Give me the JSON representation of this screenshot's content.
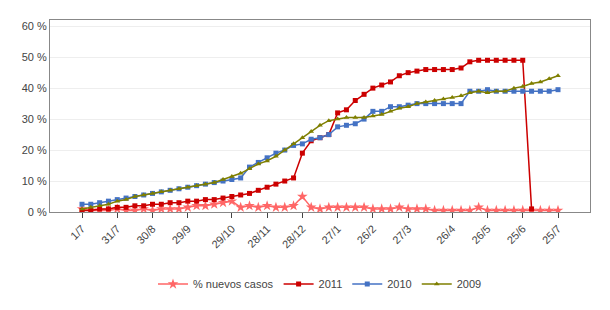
{
  "chart_data": {
    "type": "line",
    "categories": [
      "1/7",
      null,
      null,
      null,
      "31/7",
      null,
      null,
      null,
      "30/8",
      null,
      null,
      null,
      "29/9",
      null,
      null,
      null,
      null,
      "29/10",
      null,
      null,
      null,
      "28/11",
      null,
      null,
      null,
      "28/12",
      null,
      null,
      null,
      "27/1",
      null,
      null,
      null,
      "26/2",
      null,
      null,
      null,
      "27/3",
      null,
      null,
      null,
      null,
      "26/4",
      null,
      null,
      null,
      "26/5",
      null,
      null,
      null,
      "25/6",
      null,
      null,
      null,
      "25/7"
    ],
    "series": [
      {
        "name": "% nuevos casos",
        "color": "#FF6666",
        "marker": "star",
        "values": [
          1.0,
          0.5,
          0.5,
          0.5,
          1.0,
          0.5,
          0.5,
          1.0,
          0.5,
          1.0,
          1.0,
          1.0,
          1.5,
          2.0,
          2.0,
          2.5,
          3.0,
          3.5,
          1.5,
          2.0,
          1.5,
          2.0,
          1.5,
          1.5,
          2.0,
          5.0,
          1.5,
          1.0,
          1.5,
          1.5,
          1.5,
          1.5,
          1.5,
          1.0,
          1.0,
          1.0,
          1.5,
          1.0,
          1.0,
          1.0,
          0.5,
          0.5,
          0.5,
          0.5,
          0.5,
          1.5,
          0.5,
          0.5,
          0.5,
          0.5,
          0.5,
          0.5,
          0.5,
          0.5,
          0.5
        ]
      },
      {
        "name": "2011",
        "color": "#CC0000",
        "marker": "square",
        "values": [
          0.5,
          0.5,
          1.0,
          1.0,
          1.5,
          1.5,
          2.0,
          2.0,
          2.5,
          2.5,
          3.0,
          3.0,
          3.5,
          3.5,
          4.0,
          4.0,
          4.5,
          5.0,
          5.5,
          6.0,
          7.0,
          8.0,
          9.0,
          10.0,
          11.0,
          19.0,
          23.0,
          24.0,
          25.0,
          32.0,
          33.0,
          36.0,
          38.0,
          40.0,
          41.0,
          42.0,
          44.0,
          45.0,
          45.5,
          46.0,
          46.0,
          46.0,
          46.0,
          46.5,
          48.5,
          49.0,
          49.0,
          49.0,
          49.0,
          49.0,
          49.0,
          1.0,
          null,
          null,
          null
        ]
      },
      {
        "name": "2010",
        "color": "#4472C4",
        "marker": "square",
        "values": [
          2.5,
          2.5,
          3.0,
          3.5,
          4.0,
          4.5,
          5.0,
          5.5,
          6.0,
          6.5,
          7.0,
          7.5,
          8.0,
          8.5,
          9.0,
          9.5,
          10.0,
          10.5,
          11.0,
          14.5,
          16.0,
          17.5,
          19.0,
          20.0,
          21.5,
          22.0,
          23.5,
          24.0,
          25.0,
          27.5,
          28.0,
          28.5,
          30.0,
          32.5,
          32.5,
          34.0,
          34.0,
          34.5,
          35.0,
          35.0,
          35.0,
          35.0,
          35.0,
          35.0,
          39.0,
          39.0,
          39.5,
          39.0,
          39.0,
          39.0,
          39.0,
          39.0,
          39.0,
          39.0,
          39.5
        ]
      },
      {
        "name": "2009",
        "color": "#7F7F00",
        "marker": "triangle",
        "values": [
          1.0,
          1.5,
          2.0,
          2.5,
          3.5,
          4.0,
          5.0,
          5.5,
          6.0,
          6.5,
          7.0,
          7.5,
          8.0,
          8.5,
          9.0,
          9.5,
          10.5,
          11.5,
          12.5,
          14.0,
          15.5,
          16.5,
          18.0,
          20.0,
          22.0,
          24.0,
          26.0,
          28.0,
          29.5,
          30.0,
          30.5,
          30.5,
          30.5,
          31.0,
          31.5,
          32.5,
          33.5,
          34.0,
          35.0,
          35.5,
          36.0,
          36.5,
          37.0,
          37.5,
          38.5,
          39.0,
          38.5,
          39.0,
          39.0,
          40.0,
          40.5,
          41.5,
          42.0,
          43.0,
          44.0
        ]
      }
    ],
    "ylim": [
      0,
      62
    ],
    "yticks": [
      {
        "value": 0,
        "label": "0 %"
      },
      {
        "value": 10,
        "label": "10 %"
      },
      {
        "value": 20,
        "label": "20 %"
      },
      {
        "value": 30,
        "label": "30 %"
      },
      {
        "value": 40,
        "label": "40 %"
      },
      {
        "value": 50,
        "label": "50 %"
      },
      {
        "value": 60,
        "label": "60 %"
      }
    ],
    "grid": true,
    "legend": "bottom"
  }
}
